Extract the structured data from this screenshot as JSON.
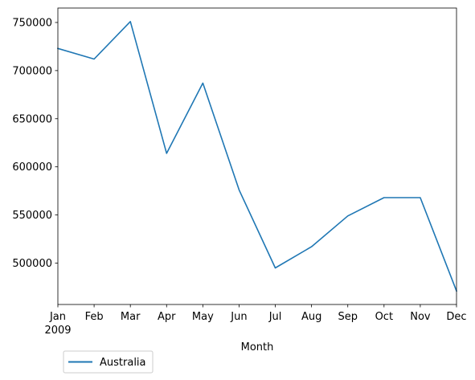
{
  "chart_data": {
    "type": "line",
    "x": [
      "Jan",
      "Feb",
      "Mar",
      "Apr",
      "May",
      "Jun",
      "Jul",
      "Aug",
      "Sep",
      "Oct",
      "Nov",
      "Dec"
    ],
    "x_sublabel": "2009",
    "series": [
      {
        "name": "Australia",
        "color": "#1f77b4",
        "values": [
          723000,
          712000,
          751000,
          614000,
          687000,
          576000,
          495000,
          517000,
          549000,
          568000,
          568000,
          471000
        ]
      }
    ],
    "xlabel": "Month",
    "ylabel": "",
    "ylim": [
      457000,
      765000
    ],
    "yticks": [
      500000,
      550000,
      600000,
      650000,
      700000,
      750000
    ],
    "ytick_labels": [
      "500000",
      "550000",
      "600000",
      "650000",
      "700000",
      "750000"
    ],
    "grid": false,
    "legend_position": "bottom-left, below plot"
  }
}
